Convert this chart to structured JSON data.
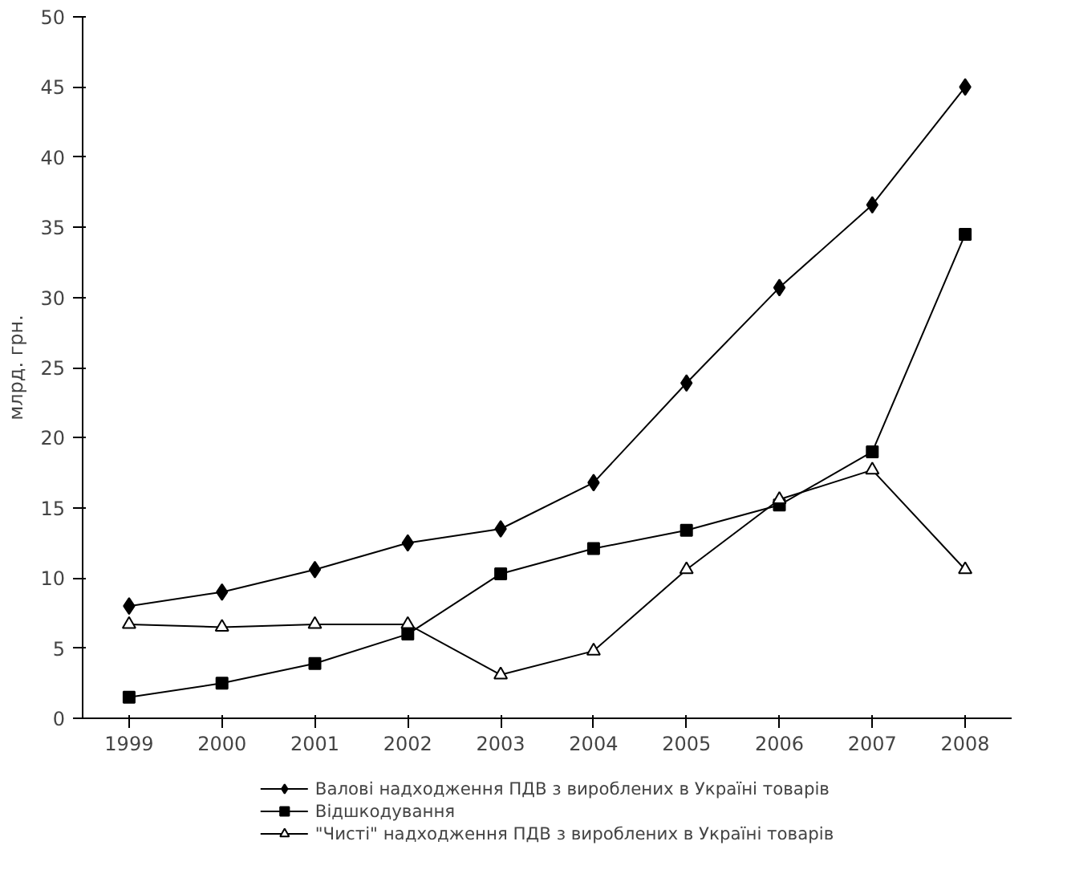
{
  "chart_data": {
    "type": "line",
    "ylabel": "млрд. грн.",
    "categories": [
      "1999",
      "2000",
      "2001",
      "2002",
      "2003",
      "2004",
      "2005",
      "2006",
      "2007",
      "2008"
    ],
    "ylim": [
      0,
      50
    ],
    "yticks": [
      0,
      5,
      10,
      15,
      20,
      25,
      30,
      35,
      40,
      45,
      50
    ],
    "grid": false,
    "legend": "bottom",
    "line_style": "solid",
    "series": [
      {
        "name": "Валові надходження ПДВ з вироблених в Україні товарів",
        "color": "#000000",
        "marker": "diamond",
        "values": [
          8.0,
          9.0,
          10.6,
          12.5,
          13.5,
          16.8,
          23.9,
          30.7,
          36.6,
          45.0
        ]
      },
      {
        "name": "Відшкодування",
        "color": "#000000",
        "marker": "square",
        "values": [
          1.5,
          2.5,
          3.9,
          6.0,
          10.3,
          12.1,
          13.4,
          15.2,
          19.0,
          34.5
        ]
      },
      {
        "name": "\"Чисті\" надходження ПДВ з вироблених в Україні товарів",
        "color": "#000000",
        "marker": "triangle",
        "values": [
          6.7,
          6.5,
          6.7,
          6.7,
          3.1,
          4.8,
          10.6,
          15.6,
          17.7,
          10.6
        ]
      }
    ]
  }
}
